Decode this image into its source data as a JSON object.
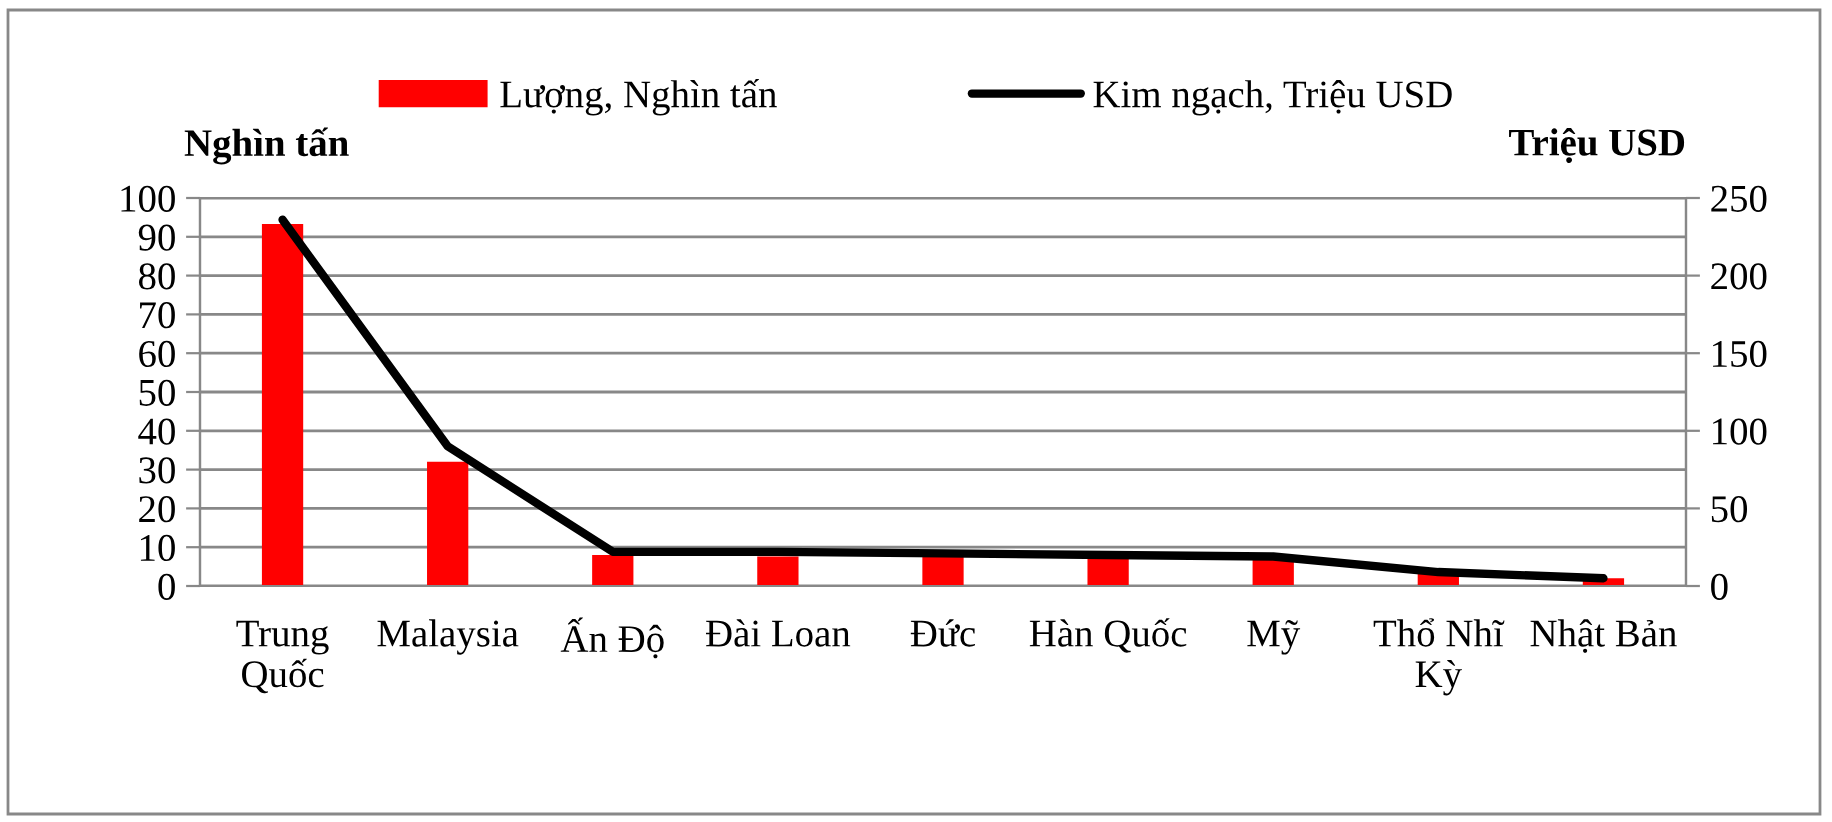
{
  "chart_data": {
    "type": "bar",
    "categories": [
      "Trung Quốc",
      "Malaysia",
      "Ấn Độ",
      "Đài Loan",
      "Đức",
      "Hàn Quốc",
      "Mỹ",
      "Thổ Nhĩ Kỳ",
      "Nhật Bản"
    ],
    "series": [
      {
        "name": "Lượng, Nghìn tấn",
        "color": "#ff0000",
        "values": [
          93.3,
          32,
          8,
          7.6,
          7.7,
          7.7,
          6.7,
          3.3,
          2
        ]
      },
      {
        "name": "Kim ngạch, Triệu USD",
        "type": "line",
        "axis": "y2",
        "color": "#000000",
        "values": [
          236,
          90,
          22,
          22,
          21,
          20,
          19,
          9,
          5
        ]
      }
    ],
    "ylabel": "Nghìn tấn",
    "y2label": "Triệu USD",
    "ylim": [
      0,
      100
    ],
    "yticks": [
      0,
      10,
      20,
      30,
      40,
      50,
      60,
      70,
      80,
      90,
      100
    ],
    "y2lim": [
      0,
      250
    ],
    "y2ticks": [
      0,
      50,
      100,
      150,
      200,
      250
    ],
    "grid": "y",
    "legend": "top",
    "line_style": "solid"
  }
}
